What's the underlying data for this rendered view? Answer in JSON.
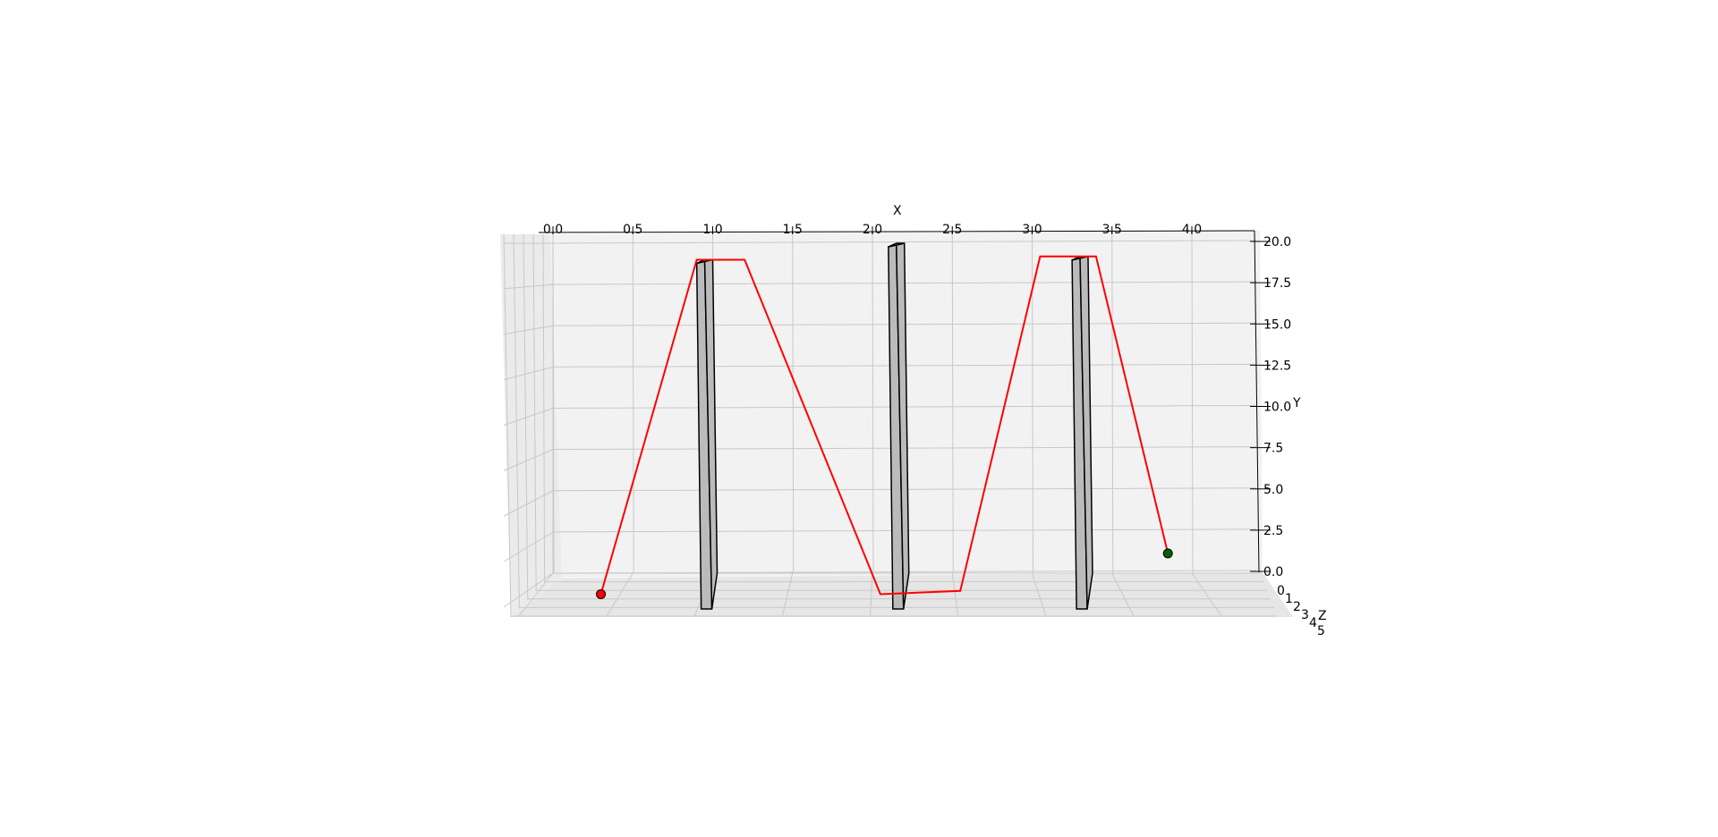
{
  "chart_data": {
    "type": "3d-line",
    "title": "",
    "xlabel": "X",
    "ylabel": "Y",
    "zlabel": "Z",
    "xlim": [
      0.0,
      4.0
    ],
    "ylim": [
      0.0,
      20.0
    ],
    "zlim": [
      0,
      5
    ],
    "x_ticks": [
      "0.0",
      "0.5",
      "1.0",
      "1.5",
      "2.0",
      "2.5",
      "3.0",
      "3.5",
      "4.0"
    ],
    "y_ticks": [
      "0.0",
      "2.5",
      "5.0",
      "7.5",
      "10.0",
      "12.5",
      "15.0",
      "17.5",
      "20.0"
    ],
    "z_ticks": [
      "0",
      "1",
      "2",
      "3",
      "4",
      "5"
    ],
    "grid": true,
    "path": {
      "color": "#ff0000",
      "points": [
        {
          "x": 0.3,
          "y": -1.0
        },
        {
          "x": 0.9,
          "y": 19.0
        },
        {
          "x": 1.2,
          "y": 19.0
        },
        {
          "x": 2.05,
          "y": -1.0
        },
        {
          "x": 2.55,
          "y": -0.8
        },
        {
          "x": 3.05,
          "y": 19.2
        },
        {
          "x": 3.4,
          "y": 19.2
        },
        {
          "x": 3.85,
          "y": 1.2
        }
      ]
    },
    "start_point": {
      "x": 0.3,
      "y": -1.0,
      "color": "#ff0000"
    },
    "end_point": {
      "x": 3.85,
      "y": 1.2,
      "color": "#006400"
    },
    "obstacles": [
      {
        "x": [
          0.9,
          1.0
        ],
        "y": [
          -2.0,
          19.0
        ],
        "color": "#bbbbbb"
      },
      {
        "x": [
          2.1,
          2.2
        ],
        "y": [
          -1.0,
          20.0
        ],
        "color": "#bbbbbb"
      },
      {
        "x": [
          3.25,
          3.35
        ],
        "y": [
          -2.0,
          19.2
        ],
        "color": "#bbbbbb"
      }
    ]
  }
}
